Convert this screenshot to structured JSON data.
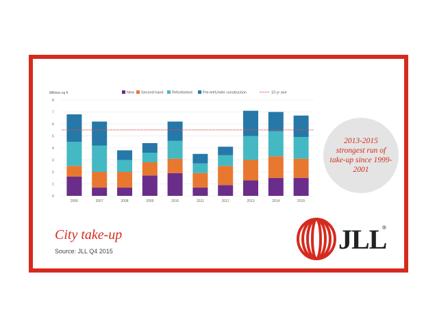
{
  "slide": {
    "title": "City take-up",
    "source": "Source: JLL Q4 2015",
    "callout": "2013-2015 strongest run of take-up since 1999-2001",
    "logo_text": "JLL",
    "logo_reg": "®"
  },
  "colors": {
    "new": "#6b2d8a",
    "second_hand": "#e8782f",
    "refurbished": "#45b9c3",
    "prelet": "#2678a8",
    "avg_line": "#e04a4a",
    "frame": "#d52b1e"
  },
  "chart_data": {
    "type": "bar",
    "stacked": true,
    "ylabel": "Millions sq ft",
    "ylim": [
      0,
      8
    ],
    "yticks": [
      "0",
      "1",
      "2",
      "3",
      "4",
      "5",
      "6",
      "7",
      "8"
    ],
    "grid": true,
    "legend_position": "top",
    "categories": [
      "2006",
      "2007",
      "2008",
      "2009",
      "2010",
      "2011",
      "2012",
      "2013",
      "2014",
      "2015"
    ],
    "series": [
      {
        "name": "New",
        "color": "#6b2d8a",
        "values": [
          1.6,
          0.7,
          0.7,
          1.7,
          1.9,
          0.7,
          0.9,
          1.3,
          1.5,
          1.5
        ]
      },
      {
        "name": "Second hand",
        "color": "#e8782f",
        "values": [
          0.9,
          1.3,
          1.3,
          1.1,
          1.2,
          1.2,
          1.6,
          1.7,
          1.8,
          1.6
        ]
      },
      {
        "name": "Refurbished",
        "color": "#45b9c3",
        "values": [
          2.0,
          2.2,
          1.0,
          0.8,
          1.5,
          0.8,
          0.9,
          2.0,
          2.1,
          1.8
        ]
      },
      {
        "name": "Pre-let/Under construction",
        "color": "#2678a8",
        "values": [
          2.3,
          2.0,
          0.8,
          0.8,
          1.6,
          0.8,
          0.7,
          2.1,
          1.6,
          1.8
        ]
      }
    ],
    "reference_line": {
      "name": "10 yr ave",
      "value": 5.5,
      "color": "#e04a4a"
    }
  }
}
